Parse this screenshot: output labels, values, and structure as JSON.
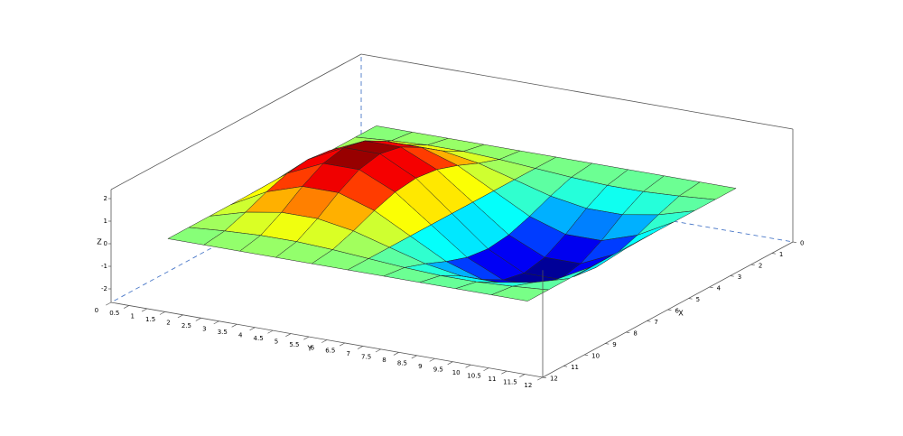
{
  "chart_data": {
    "type": "surface",
    "x_label": "X",
    "y_label": "Y",
    "z_label": "Z",
    "x": [
      1,
      2,
      3,
      4,
      5,
      6,
      7,
      8,
      9,
      10,
      11
    ],
    "y": [
      1,
      2,
      3,
      4,
      5,
      6,
      7,
      8,
      9,
      10,
      11
    ],
    "z": [
      [
        0,
        0,
        0,
        0,
        0,
        0,
        0,
        0,
        0,
        0,
        0
      ],
      [
        0,
        0.12,
        0.2,
        0.2,
        0.12,
        0,
        -0.12,
        -0.2,
        -0.2,
        -0.12,
        0
      ],
      [
        0,
        0.45,
        0.72,
        0.72,
        0.45,
        0,
        -0.45,
        -0.72,
        -0.72,
        -0.45,
        0
      ],
      [
        0,
        0.85,
        1.37,
        1.37,
        0.85,
        0,
        -0.85,
        -1.37,
        -1.37,
        -0.85,
        0
      ],
      [
        0,
        1.17,
        1.89,
        1.89,
        1.17,
        0,
        -1.17,
        -1.89,
        -1.89,
        -1.17,
        0
      ],
      [
        0,
        1.29,
        2.09,
        2.09,
        1.29,
        0,
        -1.29,
        -2.09,
        -2.09,
        -1.29,
        0
      ],
      [
        0,
        1.17,
        1.89,
        1.89,
        1.17,
        0,
        -1.17,
        -1.89,
        -1.89,
        -1.17,
        0
      ],
      [
        0,
        0.85,
        1.37,
        1.37,
        0.85,
        0,
        -0.85,
        -1.37,
        -1.37,
        -0.85,
        0
      ],
      [
        0,
        0.45,
        0.72,
        0.72,
        0.45,
        0,
        -0.45,
        -0.72,
        -0.72,
        -0.45,
        0
      ],
      [
        0,
        0.12,
        0.2,
        0.2,
        0.12,
        0,
        -0.12,
        -0.2,
        -0.2,
        -0.12,
        0
      ],
      [
        0,
        0,
        0,
        0,
        0,
        0,
        0,
        0,
        0,
        0,
        0
      ]
    ],
    "colormap": "jet",
    "xlim": [
      0,
      12
    ],
    "ylim": [
      0,
      12
    ],
    "zlim": [
      -2.6,
      2.4
    ],
    "xticks": [
      0,
      1,
      2,
      3,
      4,
      5,
      6,
      7,
      8,
      9,
      10,
      11,
      12
    ],
    "yticks": [
      0,
      0.5,
      1,
      1.5,
      2,
      2.5,
      3,
      3.5,
      4,
      4.5,
      5,
      5.5,
      6,
      6.5,
      7,
      7.5,
      8,
      8.5,
      9,
      9.5,
      10,
      10.5,
      11,
      11.5,
      12
    ],
    "zticks": [
      -2,
      -1,
      0,
      1,
      2
    ]
  }
}
